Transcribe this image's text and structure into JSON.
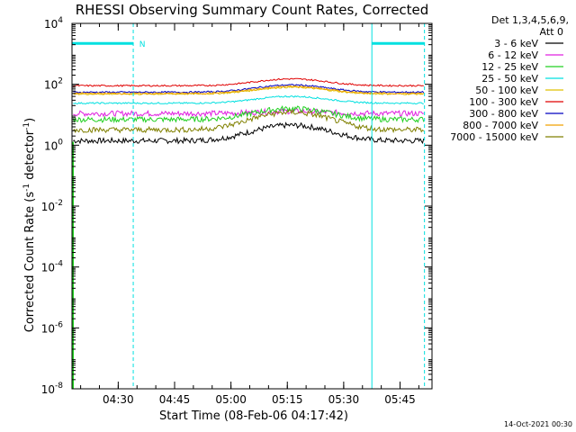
{
  "chart_data": {
    "type": "line",
    "title": "RHESSI Observing Summary Count Rates, Corrected",
    "xlabel": "Start Time (08-Feb-06 04:17:42)",
    "ylabel_main": "Corrected Count Rate (s",
    "ylabel_sup": "-1",
    "ylabel_mid": " detector",
    "ylabel_end": ")",
    "y_scale": "log",
    "ylim_exponents": [
      -8,
      4
    ],
    "xlim_minutes": [
      "04:17:42",
      "05:53:30"
    ],
    "x_ticks": [
      "04:30",
      "04:45",
      "05:00",
      "05:15",
      "05:30",
      "05:45"
    ],
    "y_ticks": [
      {
        "base": "10",
        "exp": "4"
      },
      {
        "base": "10",
        "exp": "2"
      },
      {
        "base": "10",
        "exp": "0"
      },
      {
        "base": "10",
        "exp": "-2"
      },
      {
        "base": "10",
        "exp": "-4"
      },
      {
        "base": "10",
        "exp": "-6"
      },
      {
        "base": "10",
        "exp": "-8"
      }
    ],
    "legend_header": [
      "Det 1,3,4,5,6,9,",
      "Att 0"
    ],
    "night_marker": "N",
    "series": [
      {
        "name": "3 - 6 keV",
        "color": "#000000",
        "baseline": 1.4,
        "peak": 4.5
      },
      {
        "name": "6 - 12 keV",
        "color": "#e020e0",
        "baseline": 11,
        "peak": 13
      },
      {
        "name": "12 - 25 keV",
        "color": "#20d020",
        "baseline": 7,
        "peak": 16
      },
      {
        "name": "25 - 50 keV",
        "color": "#00e0e0",
        "baseline": 24,
        "peak": 40
      },
      {
        "name": "50 - 100 keV",
        "color": "#e0c000",
        "baseline": 48,
        "peak": 80
      },
      {
        "name": "100 - 300 keV",
        "color": "#e00000",
        "baseline": 90,
        "peak": 150
      },
      {
        "name": "300 - 800 keV",
        "color": "#0000c0",
        "baseline": 55,
        "peak": 95
      },
      {
        "name": "800 - 7000 keV",
        "color": "#f0a000",
        "baseline": 50,
        "peak": 85
      },
      {
        "name": "7000 - 15000 keV",
        "color": "#808000",
        "baseline": 3.2,
        "peak": 12
      }
    ],
    "night_intervals_minutes": [
      [
        "04:17:42",
        "04:34:00"
      ],
      [
        "05:37:30",
        "05:51:30"
      ]
    ],
    "saa_lines_minutes": [
      "04:34:00",
      "05:37:30",
      "05:51:30"
    ]
  },
  "footer_date": "14-Oct-2021 00:30"
}
